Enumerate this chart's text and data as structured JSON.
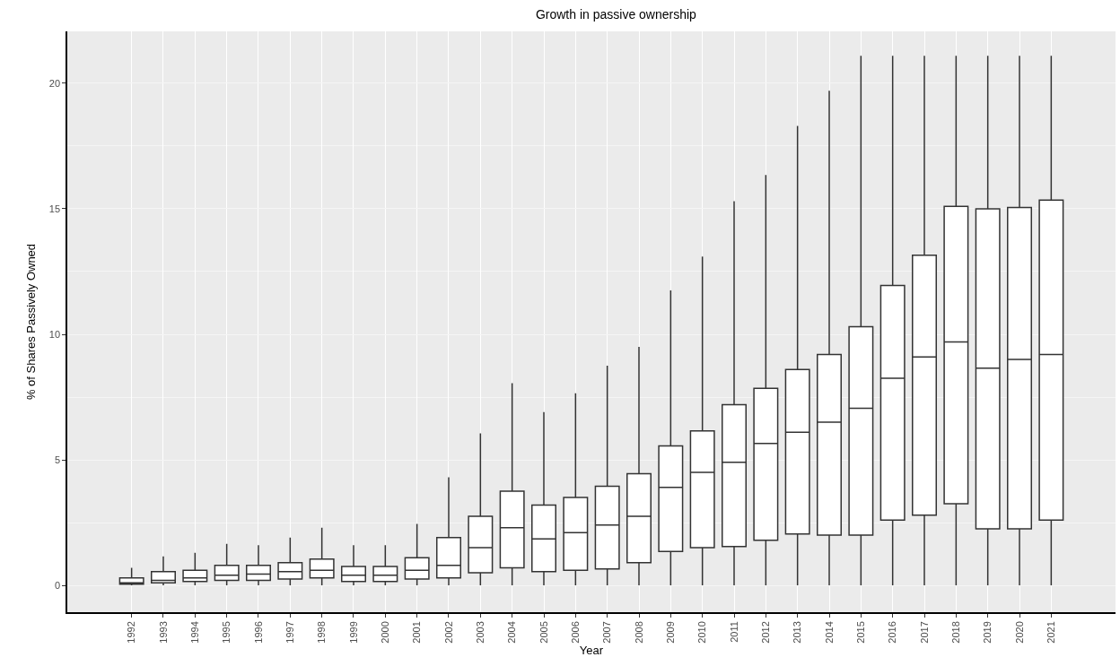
{
  "chart_data": {
    "type": "box",
    "title": "Growth in passive ownership",
    "xlabel": "Year",
    "ylabel": "% of Shares Passively Owned",
    "categories": [
      "1992",
      "1993",
      "1994",
      "1995",
      "1996",
      "1997",
      "1998",
      "1999",
      "2000",
      "2001",
      "2002",
      "2003",
      "2004",
      "2005",
      "2006",
      "2007",
      "2008",
      "2009",
      "2010",
      "2011",
      "2012",
      "2013",
      "2014",
      "2015",
      "2016",
      "2017",
      "2018",
      "2019",
      "2020",
      "2021"
    ],
    "boxes": [
      {
        "low": 0,
        "q1": 0.05,
        "median": 0.1,
        "q3": 0.3,
        "high": 0.7
      },
      {
        "low": 0,
        "q1": 0.1,
        "median": 0.2,
        "q3": 0.55,
        "high": 1.15
      },
      {
        "low": 0,
        "q1": 0.15,
        "median": 0.3,
        "q3": 0.6,
        "high": 1.3
      },
      {
        "low": 0,
        "q1": 0.2,
        "median": 0.4,
        "q3": 0.8,
        "high": 1.65
      },
      {
        "low": 0,
        "q1": 0.2,
        "median": 0.45,
        "q3": 0.8,
        "high": 1.6
      },
      {
        "low": 0,
        "q1": 0.25,
        "median": 0.55,
        "q3": 0.9,
        "high": 1.9
      },
      {
        "low": 0,
        "q1": 0.3,
        "median": 0.6,
        "q3": 1.05,
        "high": 2.3
      },
      {
        "low": 0,
        "q1": 0.15,
        "median": 0.4,
        "q3": 0.75,
        "high": 1.6
      },
      {
        "low": 0,
        "q1": 0.15,
        "median": 0.4,
        "q3": 0.75,
        "high": 1.6
      },
      {
        "low": 0,
        "q1": 0.25,
        "median": 0.6,
        "q3": 1.1,
        "high": 2.45
      },
      {
        "low": 0,
        "q1": 0.3,
        "median": 0.8,
        "q3": 1.9,
        "high": 4.3
      },
      {
        "low": 0,
        "q1": 0.5,
        "median": 1.5,
        "q3": 2.75,
        "high": 6.05
      },
      {
        "low": 0,
        "q1": 0.7,
        "median": 2.3,
        "q3": 3.75,
        "high": 8.05
      },
      {
        "low": 0,
        "q1": 0.55,
        "median": 1.85,
        "q3": 3.2,
        "high": 6.9
      },
      {
        "low": 0,
        "q1": 0.6,
        "median": 2.1,
        "q3": 3.5,
        "high": 7.65
      },
      {
        "low": 0,
        "q1": 0.65,
        "median": 2.4,
        "q3": 3.95,
        "high": 8.75
      },
      {
        "low": 0,
        "q1": 0.9,
        "median": 2.75,
        "q3": 4.45,
        "high": 9.5
      },
      {
        "low": 0,
        "q1": 1.35,
        "median": 3.9,
        "q3": 5.55,
        "high": 11.75
      },
      {
        "low": 0,
        "q1": 1.5,
        "median": 4.5,
        "q3": 6.15,
        "high": 13.1
      },
      {
        "low": 0,
        "q1": 1.55,
        "median": 4.9,
        "q3": 7.2,
        "high": 15.3
      },
      {
        "low": 0,
        "q1": 1.8,
        "median": 5.65,
        "q3": 7.85,
        "high": 16.35
      },
      {
        "low": 0,
        "q1": 2.05,
        "median": 6.1,
        "q3": 8.6,
        "high": 18.3
      },
      {
        "low": 0,
        "q1": 2.0,
        "median": 6.5,
        "q3": 9.2,
        "high": 19.7
      },
      {
        "low": 0,
        "q1": 2.0,
        "median": 7.05,
        "q3": 10.3,
        "high": 21.1
      },
      {
        "low": 0,
        "q1": 2.6,
        "median": 8.25,
        "q3": 11.95,
        "high": 21.1
      },
      {
        "low": 0,
        "q1": 2.8,
        "median": 9.1,
        "q3": 13.15,
        "high": 21.1
      },
      {
        "low": 0,
        "q1": 3.25,
        "median": 9.7,
        "q3": 15.1,
        "high": 21.1
      },
      {
        "low": 0,
        "q1": 2.25,
        "median": 8.65,
        "q3": 15.0,
        "high": 21.1
      },
      {
        "low": 0,
        "q1": 2.25,
        "median": 9.0,
        "q3": 15.05,
        "high": 21.1
      },
      {
        "low": 0,
        "q1": 2.6,
        "median": 9.2,
        "q3": 15.35,
        "high": 21.1
      }
    ],
    "color": "#333333",
    "ylim": [
      -1.07,
      22.07
    ],
    "yticks": [
      0,
      5,
      10,
      15,
      20
    ],
    "grid": true
  }
}
